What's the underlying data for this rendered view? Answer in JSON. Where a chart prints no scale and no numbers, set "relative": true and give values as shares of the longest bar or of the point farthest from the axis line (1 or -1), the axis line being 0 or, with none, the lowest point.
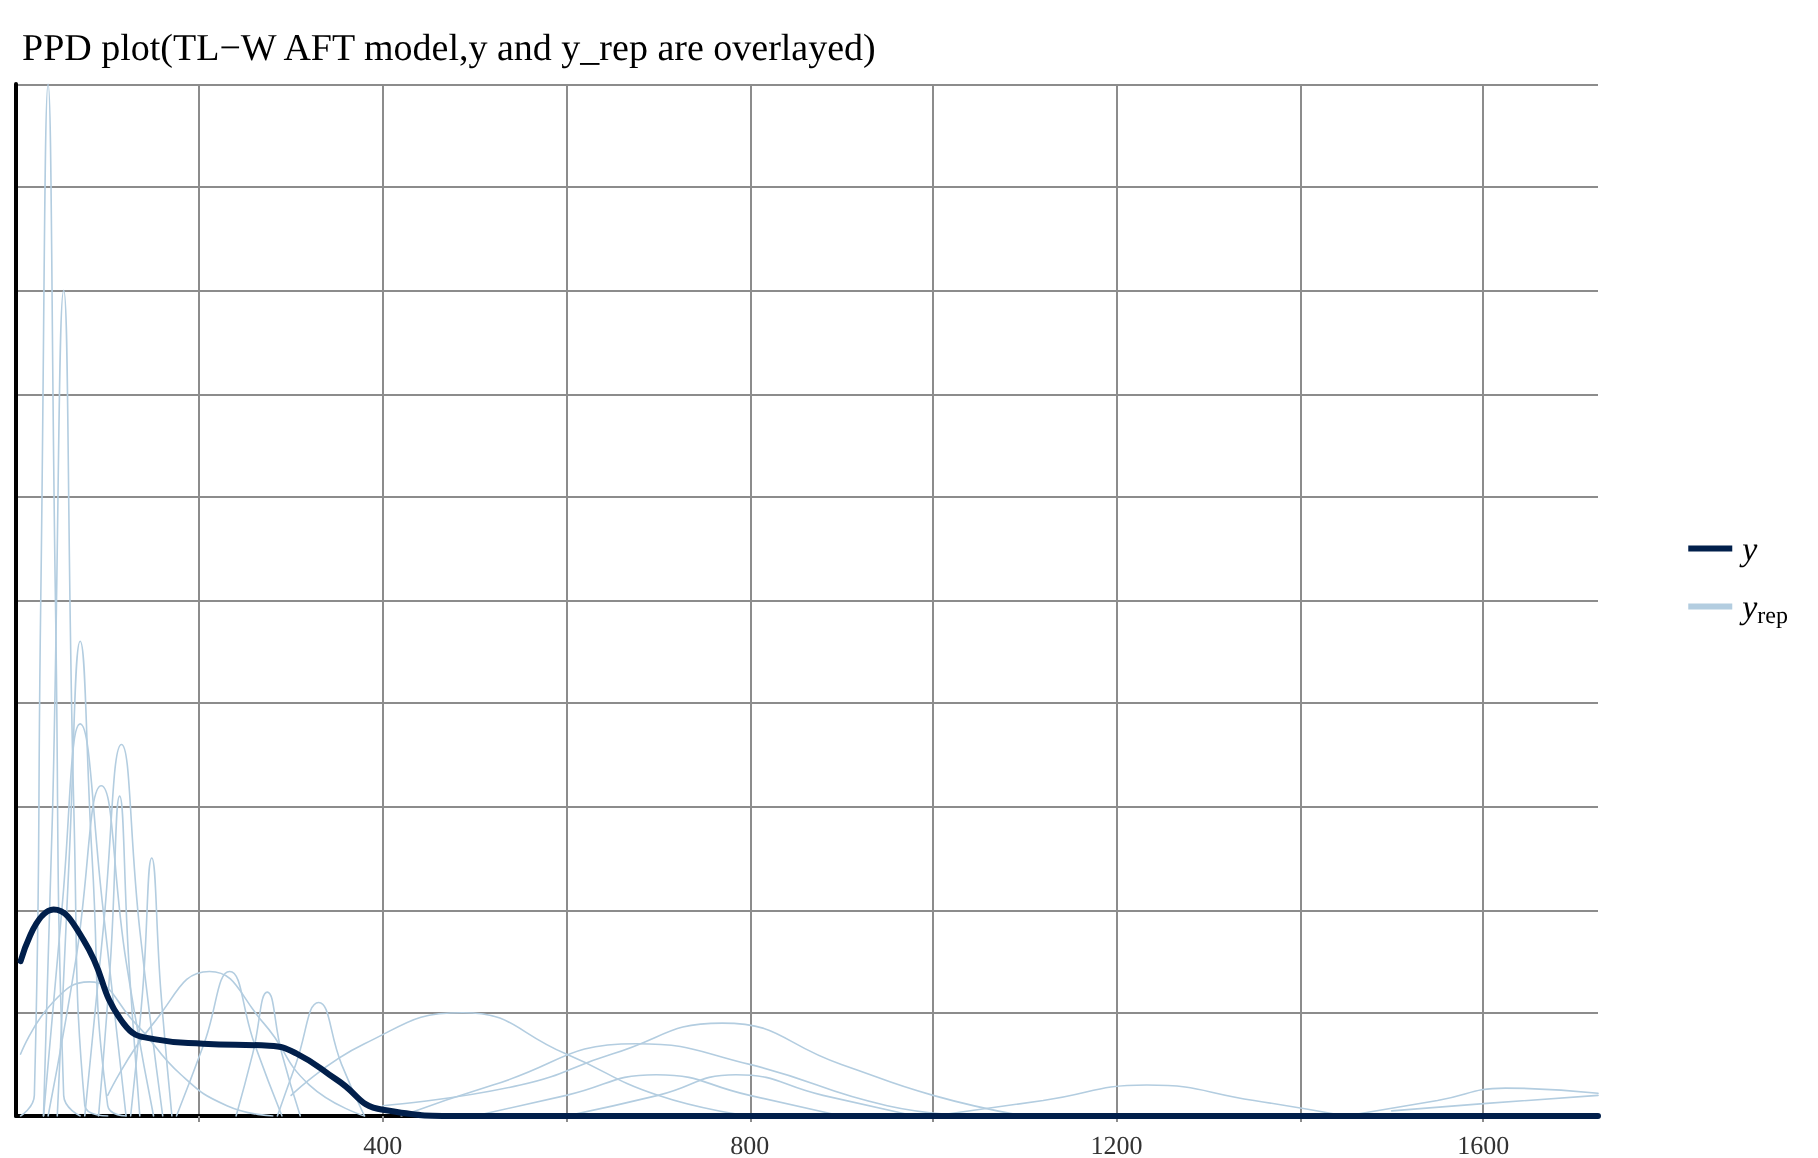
{
  "chart_data": {
    "type": "line",
    "title": "PPD plot(TL−W AFT model,y and y_rep are overlayed)",
    "relative": true,
    "grid": true,
    "legend": "right",
    "marker": "none",
    "line_style": "solid",
    "xlim": [
      0,
      1725
    ],
    "xticks": [
      {
        "value": 200,
        "label": null
      },
      400,
      {
        "value": 600,
        "label": null
      },
      800,
      {
        "value": 1000,
        "label": null
      },
      1200,
      {
        "value": 1400,
        "label": null
      },
      1600
    ],
    "series": [
      {
        "name": "y$_{rep}$",
        "color": "#b3cde0",
        "x": [
          5,
          20,
          27,
          35,
          43,
          52,
          70
        ],
        "values": [
          0,
          0.02,
          0.5,
          1,
          0.5,
          0.02,
          0
        ]
      },
      {
        "color": "#b3cde0",
        "x": [
          30,
          40,
          52,
          63,
          75,
          100
        ],
        "values": [
          0,
          0.3,
          0.8,
          0.3,
          0.01,
          0
        ]
      },
      {
        "color": "#b3cde0",
        "x": [
          45,
          58,
          70,
          83,
          100,
          120
        ],
        "values": [
          0,
          0.25,
          0.46,
          0.25,
          0.01,
          0
        ]
      },
      {
        "color": "#b3cde0",
        "x": [
          30,
          50,
          70,
          95,
          120
        ],
        "values": [
          0,
          0.2,
          0.38,
          0.2,
          0
        ]
      },
      {
        "color": "#b3cde0",
        "x": [
          75,
          95,
          115,
          135,
          160
        ],
        "values": [
          0,
          0.18,
          0.36,
          0.18,
          0
        ]
      },
      {
        "color": "#b3cde0",
        "x": [
          35,
          65,
          93,
          120,
          150
        ],
        "values": [
          0,
          0.15,
          0.32,
          0.15,
          0
        ]
      },
      {
        "color": "#b3cde0",
        "x": [
          90,
          103,
          113,
          123,
          135
        ],
        "values": [
          0,
          0.15,
          0.31,
          0.15,
          0
        ]
      },
      {
        "color": "#b3cde0",
        "x": [
          125,
          138,
          148,
          158,
          170
        ],
        "values": [
          0,
          0.12,
          0.25,
          0.12,
          0
        ]
      },
      {
        "color": "#b3cde0",
        "x": [
          5,
          40,
          80,
          130,
          180,
          230,
          280
        ],
        "values": [
          0.06,
          0.11,
          0.13,
          0.09,
          0.04,
          0.01,
          0
        ]
      },
      {
        "color": "#b3cde0",
        "x": [
          175,
          205,
          233,
          260,
          290
        ],
        "values": [
          0,
          0.07,
          0.14,
          0.07,
          0
        ]
      },
      {
        "color": "#b3cde0",
        "x": [
          100,
          150,
          211,
          270,
          320,
          380
        ],
        "values": [
          0.02,
          0.09,
          0.14,
          0.09,
          0.03,
          0
        ]
      },
      {
        "color": "#b3cde0",
        "x": [
          240,
          258,
          274,
          290,
          310
        ],
        "values": [
          0,
          0.06,
          0.12,
          0.06,
          0
        ]
      },
      {
        "color": "#b3cde0",
        "x": [
          285,
          305,
          330,
          355,
          380
        ],
        "values": [
          0,
          0.05,
          0.11,
          0.05,
          0
        ]
      },
      {
        "color": "#b3cde0",
        "x": [
          300,
          380,
          487,
          600,
          700,
          800
        ],
        "values": [
          0.02,
          0.07,
          0.1,
          0.06,
          0.02,
          0
        ]
      },
      {
        "color": "#b3cde0",
        "x": [
          400,
          550,
          650,
          770,
          900,
          1000,
          1100
        ],
        "values": [
          0.01,
          0.03,
          0.06,
          0.09,
          0.05,
          0.02,
          0
        ]
      },
      {
        "color": "#b3cde0",
        "x": [
          420,
          520,
          676,
          800,
          950,
          1050
        ],
        "values": [
          0,
          0.03,
          0.07,
          0.05,
          0.01,
          0
        ]
      },
      {
        "color": "#b3cde0",
        "x": [
          500,
          600,
          698,
          800,
          900
        ],
        "values": [
          0,
          0.02,
          0.04,
          0.02,
          0
        ]
      },
      {
        "color": "#b3cde0",
        "x": [
          600,
          700,
          785,
          880,
          980
        ],
        "values": [
          0,
          0.02,
          0.04,
          0.02,
          0
        ]
      },
      {
        "color": "#b3cde0",
        "x": [
          1000,
          1120,
          1233,
          1350,
          1450
        ],
        "values": [
          0,
          0.015,
          0.03,
          0.015,
          0
        ]
      },
      {
        "color": "#b3cde0",
        "x": [
          1450,
          1550,
          1624,
          1725
        ],
        "values": [
          0,
          0.015,
          0.027,
          0.022
        ]
      },
      {
        "color": "#b3cde0",
        "x": [
          1500,
          1600,
          1725
        ],
        "values": [
          0.005,
          0.012,
          0.02
        ]
      },
      {
        "name": "y",
        "color": "#011f4b",
        "x": [
          5,
          41,
          74,
          117,
          154,
          204,
          276,
          307,
          350,
          400,
          487,
          1725
        ],
        "values": [
          0.15,
          0.2,
          0.17,
          0.09,
          0.074,
          0.07,
          0.068,
          0.06,
          0.035,
          0.006,
          0,
          0
        ]
      }
    ]
  }
}
